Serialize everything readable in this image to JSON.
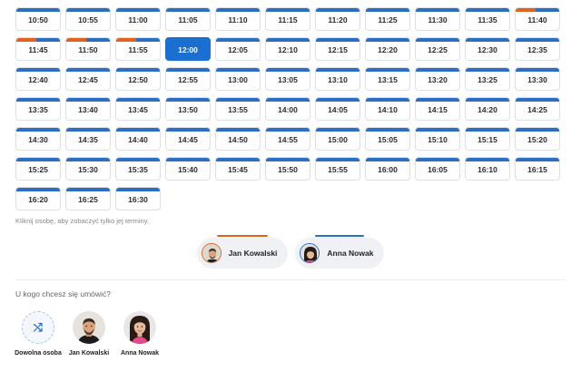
{
  "colors": {
    "accent": "#1b6fd0",
    "jan": "#e2621b",
    "anna": "#2a6fc4"
  },
  "slots": [
    {
      "time": "10:50",
      "marker": "anna"
    },
    {
      "time": "10:55",
      "marker": "anna"
    },
    {
      "time": "11:00",
      "marker": "anna"
    },
    {
      "time": "11:05",
      "marker": "anna"
    },
    {
      "time": "11:10",
      "marker": "anna"
    },
    {
      "time": "11:15",
      "marker": "anna"
    },
    {
      "time": "11:20",
      "marker": "anna"
    },
    {
      "time": "11:25",
      "marker": "anna"
    },
    {
      "time": "11:30",
      "marker": "anna"
    },
    {
      "time": "11:35",
      "marker": "anna"
    },
    {
      "time": "11:40",
      "marker": "both"
    },
    {
      "time": "11:45",
      "marker": "both"
    },
    {
      "time": "11:50",
      "marker": "both"
    },
    {
      "time": "11:55",
      "marker": "both"
    },
    {
      "time": "12:00",
      "marker": "anna",
      "selected": true
    },
    {
      "time": "12:05",
      "marker": "anna"
    },
    {
      "time": "12:10",
      "marker": "anna"
    },
    {
      "time": "12:15",
      "marker": "anna"
    },
    {
      "time": "12:20",
      "marker": "anna"
    },
    {
      "time": "12:25",
      "marker": "anna"
    },
    {
      "time": "12:30",
      "marker": "anna"
    },
    {
      "time": "12:35",
      "marker": "anna"
    },
    {
      "time": "12:40",
      "marker": "anna"
    },
    {
      "time": "12:45",
      "marker": "anna"
    },
    {
      "time": "12:50",
      "marker": "anna"
    },
    {
      "time": "12:55",
      "marker": "anna"
    },
    {
      "time": "13:00",
      "marker": "anna"
    },
    {
      "time": "13:05",
      "marker": "anna"
    },
    {
      "time": "13:10",
      "marker": "anna"
    },
    {
      "time": "13:15",
      "marker": "anna"
    },
    {
      "time": "13:20",
      "marker": "anna"
    },
    {
      "time": "13:25",
      "marker": "anna"
    },
    {
      "time": "13:30",
      "marker": "anna"
    },
    {
      "time": "13:35",
      "marker": "anna"
    },
    {
      "time": "13:40",
      "marker": "anna"
    },
    {
      "time": "13:45",
      "marker": "anna"
    },
    {
      "time": "13:50",
      "marker": "anna"
    },
    {
      "time": "13:55",
      "marker": "anna"
    },
    {
      "time": "14:00",
      "marker": "anna"
    },
    {
      "time": "14:05",
      "marker": "anna"
    },
    {
      "time": "14:10",
      "marker": "anna"
    },
    {
      "time": "14:15",
      "marker": "anna"
    },
    {
      "time": "14:20",
      "marker": "anna"
    },
    {
      "time": "14:25",
      "marker": "anna"
    },
    {
      "time": "14:30",
      "marker": "anna"
    },
    {
      "time": "14:35",
      "marker": "anna"
    },
    {
      "time": "14:40",
      "marker": "anna"
    },
    {
      "time": "14:45",
      "marker": "anna"
    },
    {
      "time": "14:50",
      "marker": "anna"
    },
    {
      "time": "14:55",
      "marker": "anna"
    },
    {
      "time": "15:00",
      "marker": "anna"
    },
    {
      "time": "15:05",
      "marker": "anna"
    },
    {
      "time": "15:10",
      "marker": "anna"
    },
    {
      "time": "15:15",
      "marker": "anna"
    },
    {
      "time": "15:20",
      "marker": "anna"
    },
    {
      "time": "15:25",
      "marker": "anna"
    },
    {
      "time": "15:30",
      "marker": "anna"
    },
    {
      "time": "15:35",
      "marker": "anna"
    },
    {
      "time": "15:40",
      "marker": "anna"
    },
    {
      "time": "15:45",
      "marker": "anna"
    },
    {
      "time": "15:50",
      "marker": "anna"
    },
    {
      "time": "15:55",
      "marker": "anna"
    },
    {
      "time": "16:00",
      "marker": "anna"
    },
    {
      "time": "16:05",
      "marker": "anna"
    },
    {
      "time": "16:10",
      "marker": "anna"
    },
    {
      "time": "16:15",
      "marker": "anna"
    },
    {
      "time": "16:20",
      "marker": "anna"
    },
    {
      "time": "16:25",
      "marker": "anna"
    },
    {
      "time": "16:30",
      "marker": "anna"
    }
  ],
  "hint": "Kliknij osobę, aby zobaczyć tylko jej terminy.",
  "filter": {
    "jan": {
      "name": "Jan Kowalski"
    },
    "anna": {
      "name": "Anna Nowak"
    }
  },
  "prompt": "U kogo chcesz się umówić?",
  "choices": {
    "any": {
      "label": "Dowolna osoba",
      "icon": "shuffle-icon"
    },
    "jan": {
      "label": "Jan Kowalski"
    },
    "anna": {
      "label": "Anna Nowak"
    }
  }
}
